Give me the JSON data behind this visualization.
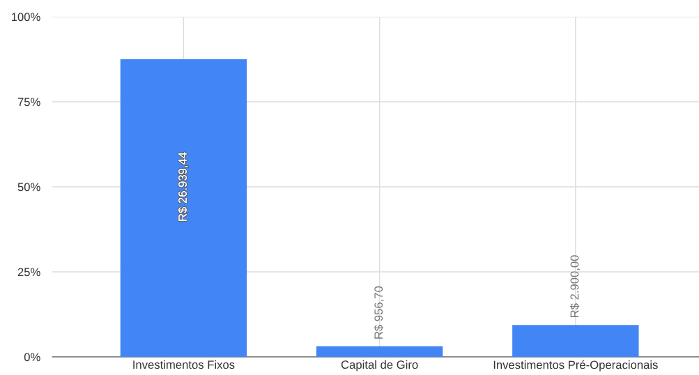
{
  "chart_data": {
    "type": "bar",
    "categories": [
      "Investimentos Fixos",
      "Capital de Giro",
      "Investimentos Pré-Operacionais"
    ],
    "values": [
      87.5,
      3.1,
      9.4
    ],
    "color": "#4285f4",
    "value_labels": [
      "R$ 26.939,44",
      "R$ 956,70",
      "R$ 2.900,00"
    ],
    "ylim": [
      0,
      100
    ],
    "yticks": [
      {
        "value": 0,
        "label": "0%"
      },
      {
        "value": 25,
        "label": "25%"
      },
      {
        "value": 50,
        "label": "50%"
      },
      {
        "value": 75,
        "label": "75%"
      },
      {
        "value": 100,
        "label": "100%"
      }
    ],
    "grid": true
  }
}
